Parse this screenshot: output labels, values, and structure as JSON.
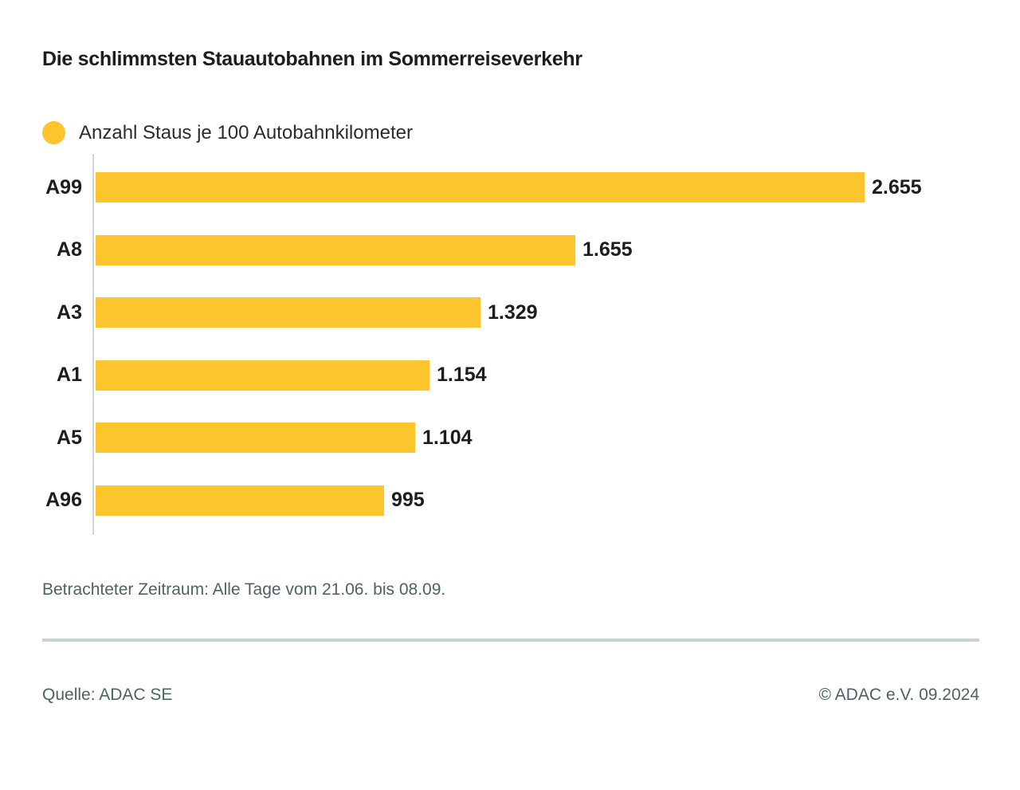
{
  "page": {
    "title": "Die schlimmsten Stauautobahnen im Sommerreiseverkehr",
    "footnote": "Betrachteter Zeitraum: Alle Tage vom 21.06. bis 08.09.",
    "source": "Quelle: ADAC SE",
    "copyright": "© ADAC e.V. 09.2024"
  },
  "colors": {
    "bar": "#FCC42D",
    "text": "#1d1d1b",
    "muted_teal": "#4b6462",
    "axis_line": "#cdd8d5",
    "divider": "#c9d3d0",
    "background": "#ffffff"
  },
  "chart_data": {
    "type": "bar",
    "orientation": "horizontal",
    "title": "Die schlimmsten Stauautobahnen im Sommerreiseverkehr",
    "legend": [
      {
        "label": "Anzahl Staus je 100 Autobahnkilometer",
        "color": "#FCC42D",
        "marker": "circle"
      }
    ],
    "legend_position": "top-left",
    "categories": [
      "A99",
      "A8",
      "A3",
      "A1",
      "A5",
      "A96"
    ],
    "values": [
      2655,
      1655,
      1329,
      1154,
      1104,
      995
    ],
    "value_labels": [
      "2.655",
      "1.655",
      "1.329",
      "1.154",
      "1.104",
      "995"
    ],
    "xlabel": "",
    "ylabel": "",
    "xlim": [
      0,
      2655
    ],
    "grid": false,
    "bar_color": "#FCC42D",
    "annotation": "Betrachteter Zeitraum: Alle Tage vom 21.06. bis 08.09."
  }
}
